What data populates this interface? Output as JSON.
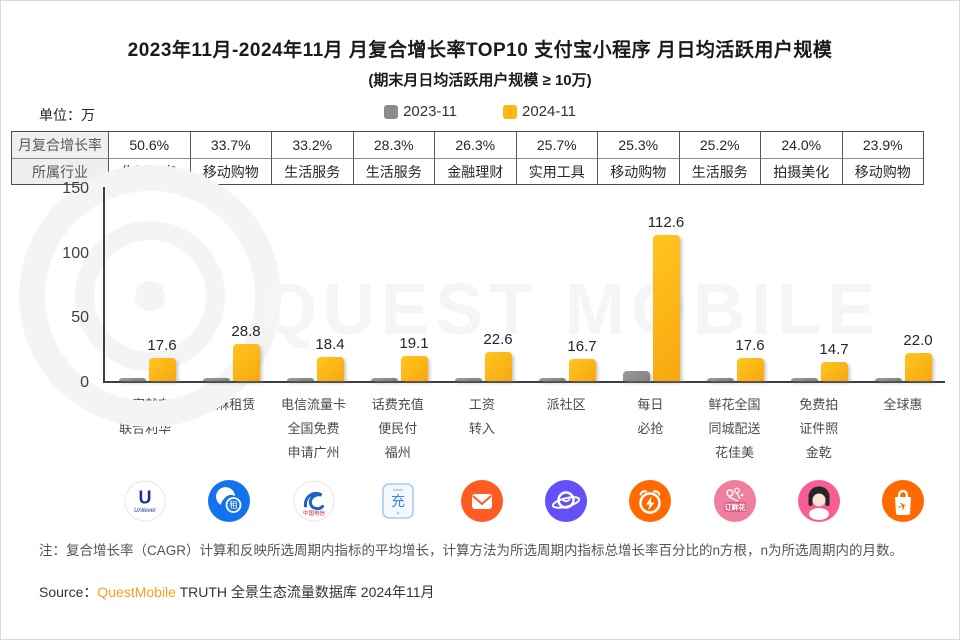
{
  "header": {
    "title": "2023年11月-2024年11月 月复合增长率TOP10 支付宝小程序 月日均活跃用户规模",
    "subtitle": "(期末月日均活跃用户规模 ≥ 10万)",
    "unit": "单位：万"
  },
  "legend": [
    {
      "label": "2023-11",
      "color": "#8c8c8c"
    },
    {
      "label": "2024-11",
      "color": "#fdb714"
    }
  ],
  "table": {
    "row_headers": [
      "月复合增长率",
      "所属行业"
    ],
    "cagr": [
      "50.6%",
      "33.7%",
      "33.2%",
      "28.3%",
      "26.3%",
      "25.7%",
      "25.3%",
      "25.2%",
      "24.0%",
      "23.9%"
    ],
    "industry": [
      "生活服务",
      "移动购物",
      "生活服务",
      "生活服务",
      "金融理财",
      "实用工具",
      "移动购物",
      "生活服务",
      "拍摄美化",
      "移动购物"
    ]
  },
  "chart_data": {
    "type": "bar",
    "title": "2023年11月-2024年11月 月复合增长率TOP10 支付宝小程序 月日均活跃用户规模",
    "subtitle": "(期末月日均活跃用户规模 ≥ 10万)",
    "ylabel": "单位：万",
    "ylim": [
      0,
      150
    ],
    "yticks": [
      0,
      50,
      100,
      150
    ],
    "grid": false,
    "legend_position": "top-center",
    "categories": [
      "有家就有\n联合利华",
      "芝麻租赁",
      "电信流量卡\n全国免费\n申请广州",
      "话费充值\n便民付\n福州",
      "工资\n转入",
      "派社区",
      "每日\n必抢",
      "鲜花全国\n同城配送\n花佳美",
      "免费拍\n证件照\n金乾",
      "全球惠"
    ],
    "series": [
      {
        "name": "2023-11",
        "color": "#8c8c8c",
        "values": [
          2,
          2,
          2,
          2,
          2.5,
          2,
          8,
          2,
          1.5,
          2.5
        ],
        "labels": null
      },
      {
        "name": "2024-11",
        "color": "#fdb714",
        "values": [
          17.6,
          28.8,
          18.4,
          19.1,
          22.6,
          16.7,
          112.6,
          17.6,
          14.7,
          22.0
        ],
        "labels": [
          "17.6",
          "28.8",
          "18.4",
          "19.1",
          "22.6",
          "16.7",
          "112.6",
          "17.6",
          "14.7",
          "22.0"
        ]
      }
    ],
    "cagr_row": {
      "label": "月复合增长率",
      "values": [
        "50.6%",
        "33.7%",
        "33.2%",
        "28.3%",
        "26.3%",
        "25.7%",
        "25.3%",
        "25.2%",
        "24.0%",
        "23.9%"
      ]
    },
    "industry_row": {
      "label": "所属行业",
      "values": [
        "生活服务",
        "移动购物",
        "生活服务",
        "生活服务",
        "金融理财",
        "实用工具",
        "移动购物",
        "生活服务",
        "拍摄美化",
        "移动购物"
      ]
    }
  },
  "icons": [
    "unilever-logo-icon",
    "zhima-rental-icon",
    "china-telecom-icon",
    "phone-recharge-icon",
    "salary-transfer-icon",
    "pai-community-icon",
    "daily-rush-icon",
    "fresh-flower-icon",
    "id-photo-icon",
    "global-discount-icon"
  ],
  "watermark": {
    "text": "QUEST MOBILE"
  },
  "footer": {
    "note": "注：复合增长率（CAGR）计算和反映所选周期内指标的平均增长，计算方法为所选周期内指标总增长率百分比的n方根，n为所选周期内的月数。",
    "source_prefix": "Source：",
    "source_brand": "QuestMobile",
    "source_suffix": " TRUTH 全景生态流量数据库 2024年11月"
  }
}
